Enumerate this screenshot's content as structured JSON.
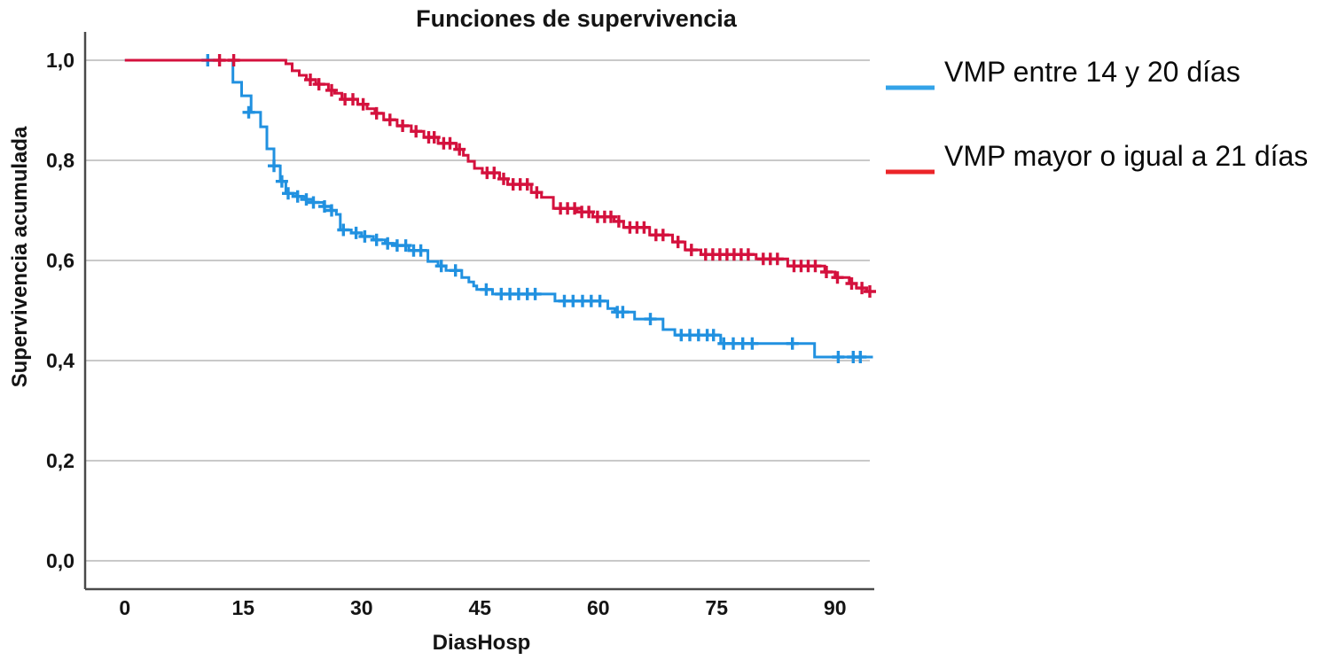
{
  "chart_data": {
    "type": "line",
    "subtype": "kaplan-meier-step-survival",
    "title": "Funciones de supervivencia",
    "xlabel": "DiasHosp",
    "ylabel": "Supervivencia acumulada",
    "x_ticks": [
      0,
      15,
      30,
      45,
      60,
      75,
      90
    ],
    "y_ticks": [
      {
        "value": 0.0,
        "label": "0,0"
      },
      {
        "value": 0.2,
        "label": "0,2"
      },
      {
        "value": 0.4,
        "label": "0,4"
      },
      {
        "value": 0.6,
        "label": "0,6"
      },
      {
        "value": 0.8,
        "label": "0,8"
      },
      {
        "value": 1.0,
        "label": "1,0"
      }
    ],
    "xlim": [
      -5,
      95
    ],
    "ylim": [
      0,
      1.05
    ],
    "grid": "horizontal",
    "legend_position": "top-right",
    "colors": {
      "grid": "#c9c9c9",
      "axis": "#4a4a4a",
      "text": "#141414",
      "background": "#ffffff"
    },
    "series": [
      {
        "name": "VMP entre 14 y 20 días",
        "color": "#2191E0",
        "legend_swatch_color": "#33A3E8",
        "end_day": 94.8,
        "end_value": 0.407,
        "steps": [
          [
            0,
            1.0
          ],
          [
            13.7,
            0.956
          ],
          [
            14.8,
            0.929
          ],
          [
            16,
            0.896
          ],
          [
            17.2,
            0.867
          ],
          [
            18,
            0.823
          ],
          [
            18.9,
            0.789
          ],
          [
            19.7,
            0.758
          ],
          [
            20.4,
            0.734
          ],
          [
            21.8,
            0.728
          ],
          [
            22.9,
            0.722
          ],
          [
            23.8,
            0.716
          ],
          [
            25.2,
            0.708
          ],
          [
            26.1,
            0.7
          ],
          [
            26.8,
            0.692
          ],
          [
            27.3,
            0.661
          ],
          [
            28.7,
            0.655
          ],
          [
            30,
            0.648
          ],
          [
            31.5,
            0.641
          ],
          [
            33,
            0.634
          ],
          [
            34.3,
            0.63
          ],
          [
            36,
            0.62
          ],
          [
            38.4,
            0.598
          ],
          [
            39.7,
            0.589
          ],
          [
            40.7,
            0.58
          ],
          [
            42.7,
            0.566
          ],
          [
            43.6,
            0.557
          ],
          [
            44.2,
            0.549
          ],
          [
            44.6,
            0.542
          ],
          [
            46.6,
            0.533
          ],
          [
            54.5,
            0.519
          ],
          [
            61.2,
            0.504
          ],
          [
            62.1,
            0.497
          ],
          [
            64.6,
            0.483
          ],
          [
            68.2,
            0.462
          ],
          [
            69.7,
            0.451
          ],
          [
            75.5,
            0.434
          ],
          [
            87.4,
            0.407
          ]
        ],
        "censors": [
          [
            10.5,
            1.0
          ],
          [
            15.7,
            0.896
          ],
          [
            18.9,
            0.789
          ],
          [
            19.9,
            0.758
          ],
          [
            20.7,
            0.734
          ],
          [
            21.9,
            0.728
          ],
          [
            23,
            0.722
          ],
          [
            23.9,
            0.716
          ],
          [
            25.3,
            0.708
          ],
          [
            26.2,
            0.7
          ],
          [
            27.7,
            0.661
          ],
          [
            29.3,
            0.655
          ],
          [
            30.4,
            0.648
          ],
          [
            31.9,
            0.641
          ],
          [
            33.3,
            0.634
          ],
          [
            34.5,
            0.63
          ],
          [
            35.6,
            0.63
          ],
          [
            36.6,
            0.62
          ],
          [
            37.5,
            0.62
          ],
          [
            40.1,
            0.589
          ],
          [
            41.9,
            0.58
          ],
          [
            45.8,
            0.542
          ],
          [
            47.7,
            0.533
          ],
          [
            48.8,
            0.533
          ],
          [
            49.9,
            0.533
          ],
          [
            51,
            0.533
          ],
          [
            52,
            0.533
          ],
          [
            55.7,
            0.519
          ],
          [
            56.8,
            0.519
          ],
          [
            58,
            0.519
          ],
          [
            59.1,
            0.519
          ],
          [
            60.2,
            0.519
          ],
          [
            62.4,
            0.497
          ],
          [
            63.1,
            0.497
          ],
          [
            66.6,
            0.483
          ],
          [
            70.5,
            0.451
          ],
          [
            71.6,
            0.451
          ],
          [
            72.7,
            0.451
          ],
          [
            73.8,
            0.451
          ],
          [
            74.6,
            0.451
          ],
          [
            75.9,
            0.434
          ],
          [
            77.1,
            0.434
          ],
          [
            78.3,
            0.434
          ],
          [
            79.5,
            0.434
          ],
          [
            84.6,
            0.434
          ],
          [
            90.4,
            0.407
          ],
          [
            92.3,
            0.407
          ],
          [
            93.2,
            0.407
          ]
        ]
      },
      {
        "name": "VMP mayor o igual a 21 días",
        "color": "#D4113D",
        "legend_swatch_color": "#EB2428",
        "end_day": 94.8,
        "end_value": 0.538,
        "steps": [
          [
            0,
            1.0
          ],
          [
            20.4,
            0.993
          ],
          [
            21.2,
            0.979
          ],
          [
            22.1,
            0.97
          ],
          [
            23,
            0.961
          ],
          [
            24.2,
            0.952
          ],
          [
            25.8,
            0.94
          ],
          [
            26.6,
            0.934
          ],
          [
            27.5,
            0.922
          ],
          [
            29.5,
            0.912
          ],
          [
            30.7,
            0.903
          ],
          [
            31.7,
            0.894
          ],
          [
            32.8,
            0.881
          ],
          [
            34.5,
            0.869
          ],
          [
            36.3,
            0.858
          ],
          [
            37.9,
            0.846
          ],
          [
            39.7,
            0.834
          ],
          [
            42,
            0.822
          ],
          [
            42.9,
            0.81
          ],
          [
            43.5,
            0.798
          ],
          [
            44.3,
            0.784
          ],
          [
            45.3,
            0.775
          ],
          [
            47.5,
            0.763
          ],
          [
            48.5,
            0.752
          ],
          [
            51.5,
            0.736
          ],
          [
            52.8,
            0.726
          ],
          [
            54.3,
            0.704
          ],
          [
            57.3,
            0.697
          ],
          [
            59.3,
            0.687
          ],
          [
            62,
            0.678
          ],
          [
            63.2,
            0.666
          ],
          [
            66.5,
            0.651
          ],
          [
            69.4,
            0.637
          ],
          [
            71,
            0.621
          ],
          [
            73,
            0.612
          ],
          [
            80,
            0.603
          ],
          [
            84,
            0.589
          ],
          [
            88.7,
            0.577
          ],
          [
            90,
            0.566
          ],
          [
            91.8,
            0.554
          ],
          [
            92.7,
            0.545
          ],
          [
            94,
            0.538
          ]
        ],
        "censors": [
          [
            12,
            1.0
          ],
          [
            13.8,
            1.0
          ],
          [
            23.5,
            0.961
          ],
          [
            24.6,
            0.952
          ],
          [
            26.2,
            0.94
          ],
          [
            27.9,
            0.922
          ],
          [
            28.9,
            0.922
          ],
          [
            30.2,
            0.912
          ],
          [
            31.9,
            0.894
          ],
          [
            33.6,
            0.881
          ],
          [
            35.2,
            0.869
          ],
          [
            36.9,
            0.858
          ],
          [
            38.5,
            0.846
          ],
          [
            39.2,
            0.846
          ],
          [
            40.4,
            0.834
          ],
          [
            41.2,
            0.834
          ],
          [
            42.4,
            0.822
          ],
          [
            45.9,
            0.775
          ],
          [
            46.8,
            0.775
          ],
          [
            48,
            0.763
          ],
          [
            49.2,
            0.752
          ],
          [
            50.1,
            0.752
          ],
          [
            51,
            0.752
          ],
          [
            52.2,
            0.736
          ],
          [
            55.2,
            0.704
          ],
          [
            56.1,
            0.704
          ],
          [
            57,
            0.704
          ],
          [
            57.9,
            0.697
          ],
          [
            58.8,
            0.697
          ],
          [
            59.9,
            0.687
          ],
          [
            60.8,
            0.687
          ],
          [
            61.6,
            0.687
          ],
          [
            62.6,
            0.678
          ],
          [
            64,
            0.666
          ],
          [
            64.9,
            0.666
          ],
          [
            65.8,
            0.666
          ],
          [
            67.3,
            0.651
          ],
          [
            68.2,
            0.651
          ],
          [
            70.1,
            0.637
          ],
          [
            71.8,
            0.621
          ],
          [
            73.6,
            0.612
          ],
          [
            74.5,
            0.612
          ],
          [
            75.4,
            0.612
          ],
          [
            76.3,
            0.612
          ],
          [
            77.2,
            0.612
          ],
          [
            78.1,
            0.612
          ],
          [
            79,
            0.612
          ],
          [
            80.9,
            0.603
          ],
          [
            81.8,
            0.603
          ],
          [
            82.7,
            0.603
          ],
          [
            84.8,
            0.589
          ],
          [
            85.7,
            0.589
          ],
          [
            86.6,
            0.589
          ],
          [
            87.5,
            0.589
          ],
          [
            88.9,
            0.577
          ],
          [
            90.3,
            0.566
          ],
          [
            92.1,
            0.554
          ],
          [
            93.4,
            0.545
          ],
          [
            94.4,
            0.538
          ]
        ]
      }
    ]
  }
}
